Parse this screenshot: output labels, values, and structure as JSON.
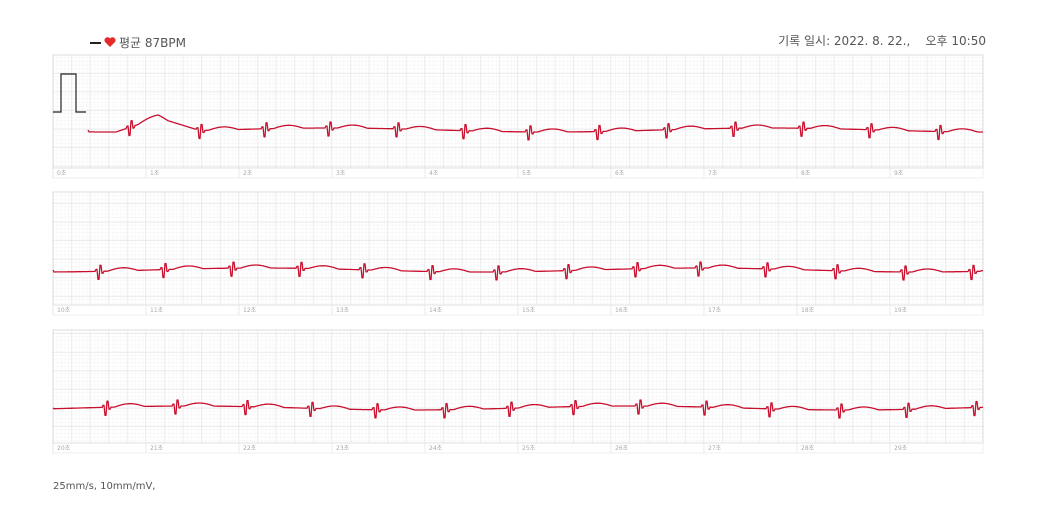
{
  "header": {
    "average": "평균 87BPM",
    "recorded": "기록 일시: 2022. 8. 22.,    오후 10:50"
  },
  "strips": [
    {
      "labels": [
        "0초",
        "1초",
        "2초",
        "3초",
        "4초",
        "5초",
        "6초",
        "7초",
        "8초",
        "9초"
      ]
    },
    {
      "labels": [
        "10초",
        "11초",
        "12초",
        "13초",
        "14초",
        "15초",
        "16초",
        "17초",
        "18초",
        "19초"
      ]
    },
    {
      "labels": [
        "20초",
        "21초",
        "22초",
        "23초",
        "24초",
        "25초",
        "26초",
        "27초",
        "28초",
        "29초"
      ]
    }
  ],
  "footer": "25mm/s, 10mm/mV,"
}
